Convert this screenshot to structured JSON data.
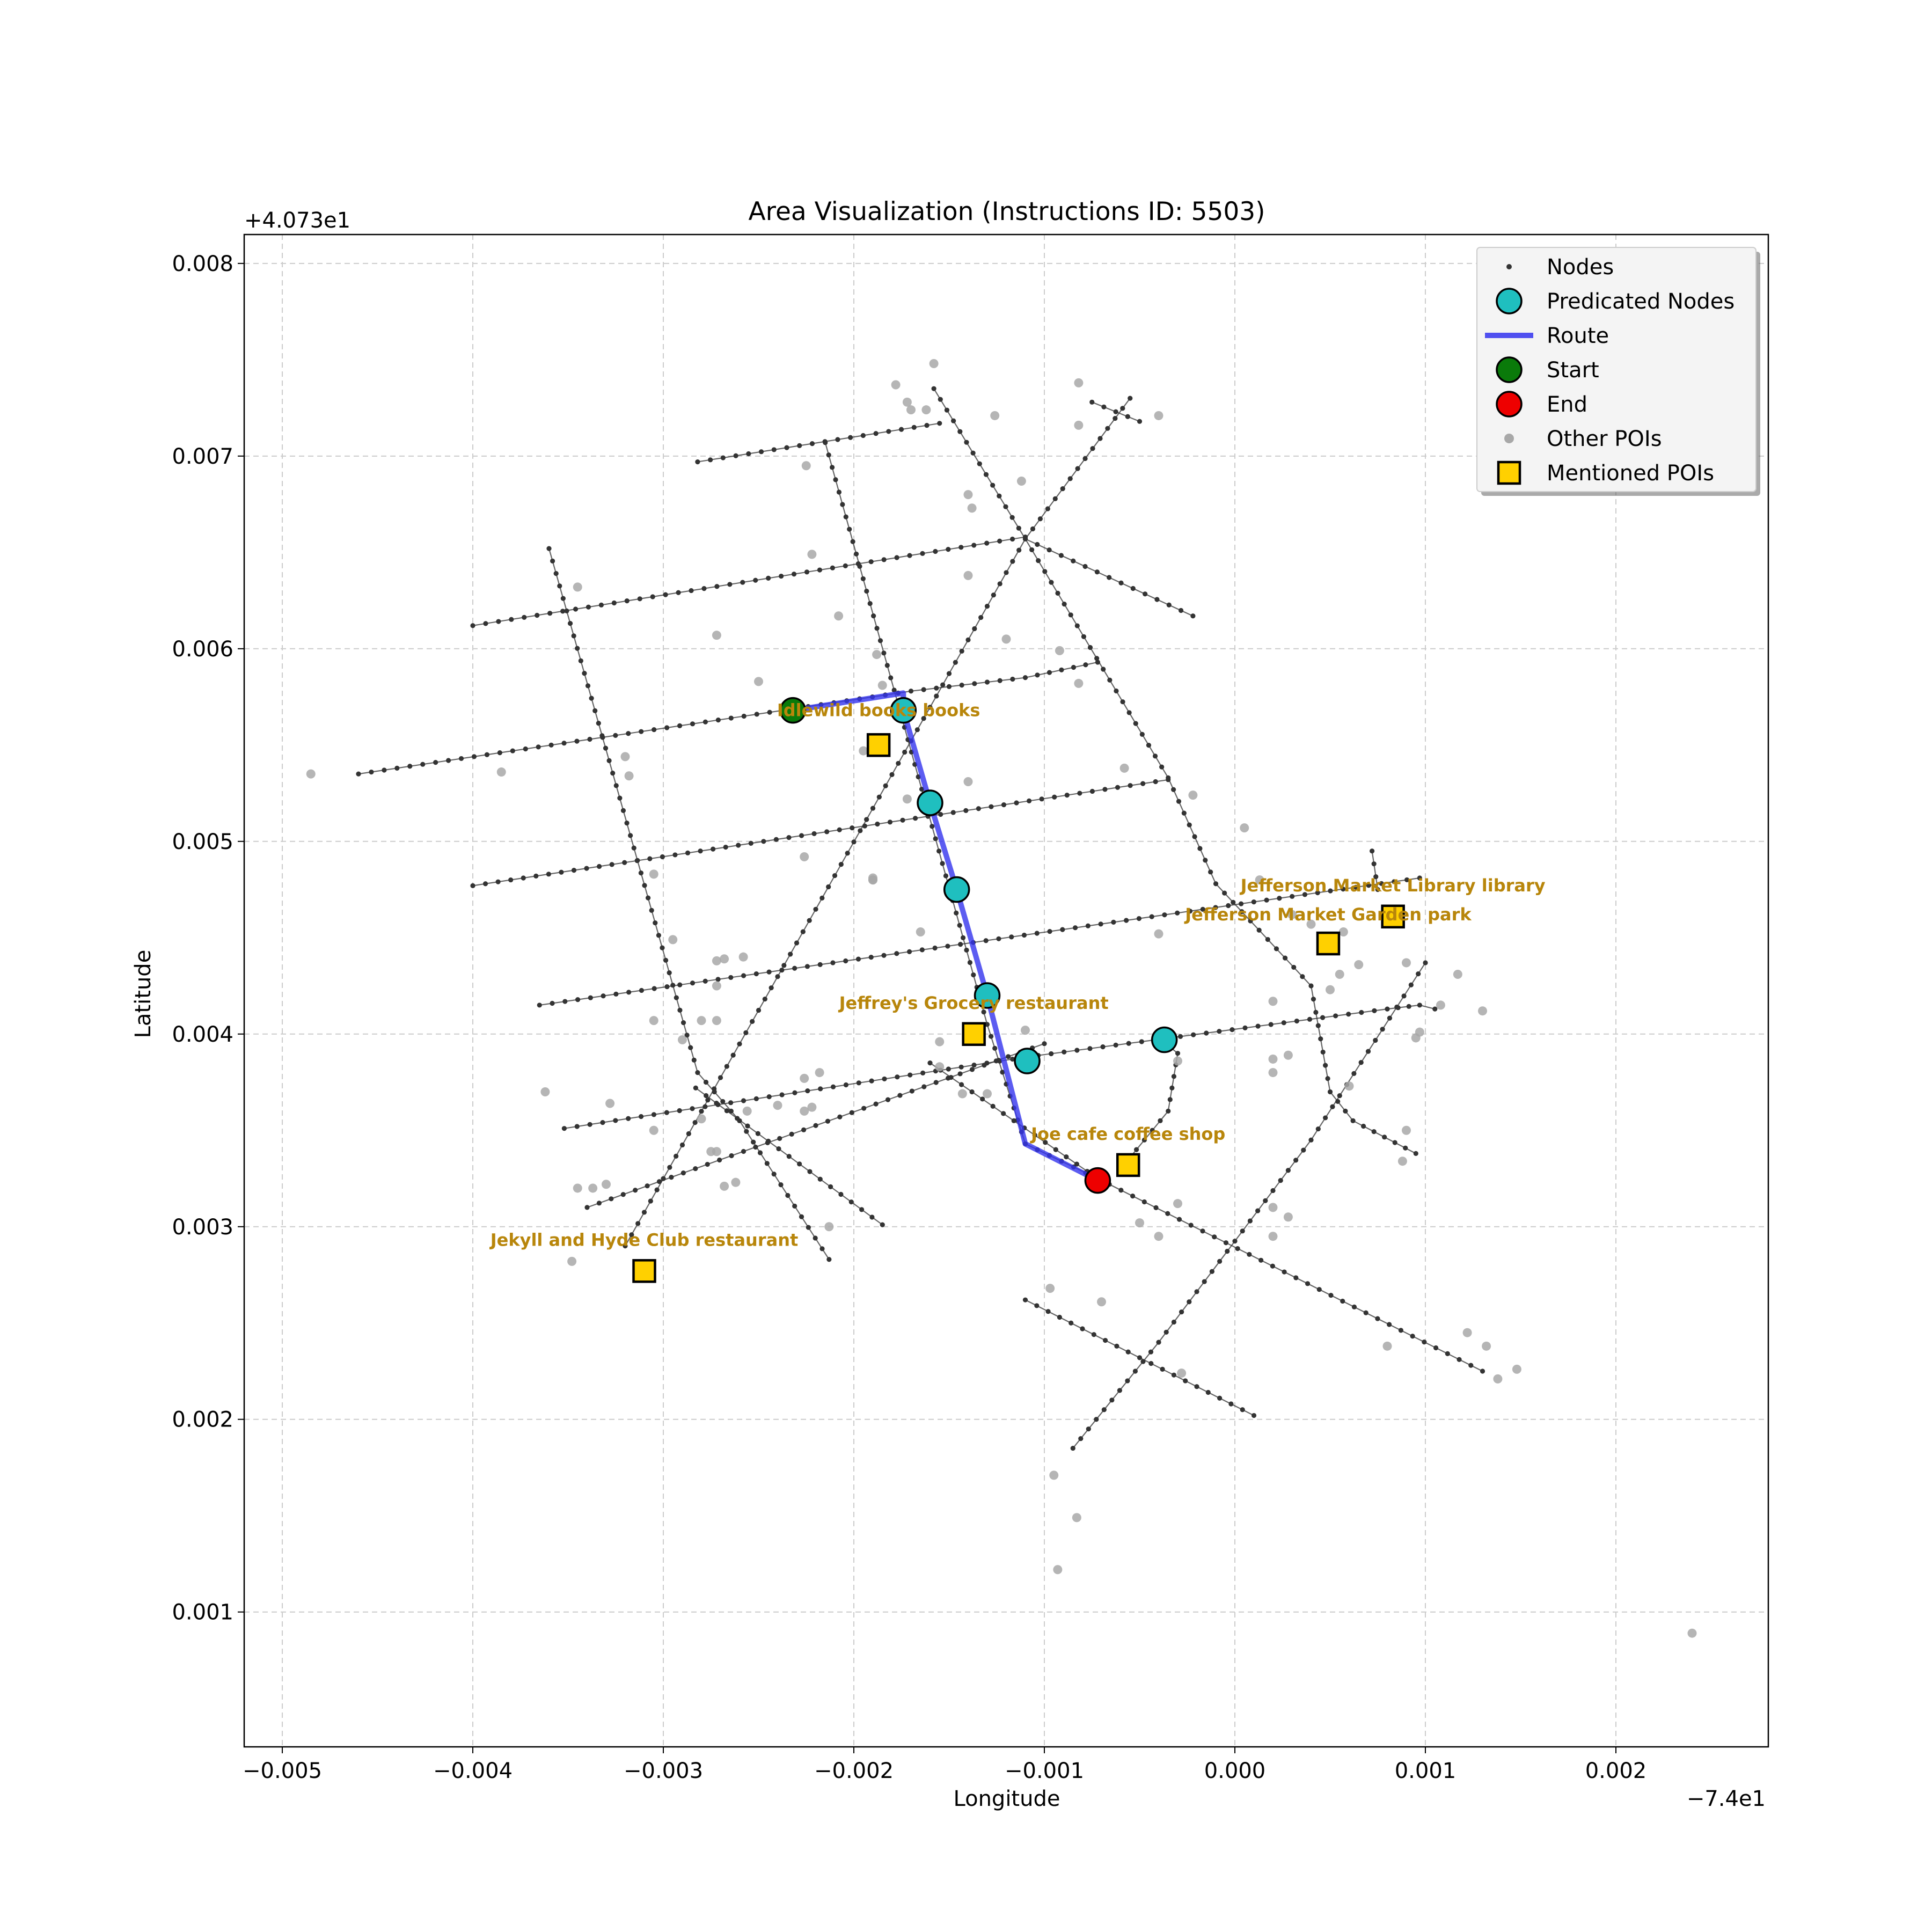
{
  "title": "Area Visualization (Instructions ID: 5503)",
  "x_offset_label": "−7.4e1",
  "y_offset_label": "+4.073e1",
  "colors": {
    "node": "#333333",
    "edge": "#333333",
    "route": "#3333ee",
    "predicted": "#1fbfbf",
    "start": "#0a7a0a",
    "end": "#ee0000",
    "other_poi": "#a8a8a8",
    "mentioned_poi": "#ffd000",
    "poi_label": "#b8860b",
    "grid": "#cccccc"
  },
  "legend": {
    "position": "top-right",
    "items": [
      {
        "label": "Nodes",
        "kind": "node"
      },
      {
        "label": "Predicated Nodes",
        "kind": "predicted"
      },
      {
        "label": "Route",
        "kind": "route"
      },
      {
        "label": "Start",
        "kind": "start"
      },
      {
        "label": "End",
        "kind": "end"
      },
      {
        "label": "Other POIs",
        "kind": "other"
      },
      {
        "label": "Mentioned POIs",
        "kind": "mentioned"
      }
    ]
  },
  "chart_data": {
    "type": "scatter",
    "xlabel": "Longitude",
    "ylabel": "Latitude",
    "xlim": [
      -0.0052,
      0.0028
    ],
    "ylim": [
      0.0003,
      0.00815
    ],
    "x_ticks": [
      -0.005,
      -0.004,
      -0.003,
      -0.002,
      -0.001,
      0.0,
      0.001,
      0.002
    ],
    "x_tick_labels": [
      "−0.005",
      "−0.004",
      "−0.003",
      "−0.002",
      "−0.001",
      "0.000",
      "0.001",
      "0.002"
    ],
    "y_ticks": [
      0.001,
      0.002,
      0.003,
      0.004,
      0.005,
      0.006,
      0.007,
      0.008
    ],
    "y_tick_labels": [
      "0.001",
      "0.002",
      "0.003",
      "0.004",
      "0.005",
      "0.006",
      "0.007",
      "0.008"
    ],
    "grid": true,
    "streets": [
      [
        [
          -0.0046,
          0.00535
        ],
        [
          -0.0017,
          0.00578
        ],
        [
          -0.0011,
          0.00585
        ],
        [
          -0.00072,
          0.00593
        ]
      ],
      [
        [
          -0.004,
          0.00612
        ],
        [
          -0.0011,
          0.00658
        ]
      ],
      [
        [
          -0.00282,
          0.00697
        ],
        [
          -0.00155,
          0.00717
        ]
      ],
      [
        [
          -0.004,
          0.00477
        ],
        [
          -0.00035,
          0.00532
        ]
      ],
      [
        [
          -0.00365,
          0.00415
        ],
        [
          0.00097,
          0.00481
        ]
      ],
      [
        [
          -0.00352,
          0.00351
        ],
        [
          -0.0011,
          0.00388
        ],
        [
          0.0008,
          0.00413
        ],
        [
          0.00097,
          0.00415
        ],
        [
          0.00105,
          0.00413
        ]
      ],
      [
        [
          -0.0034,
          0.0031
        ],
        [
          -0.001,
          0.00395
        ]
      ],
      [
        [
          -0.0036,
          0.00652
        ],
        [
          -0.00282,
          0.0038
        ],
        [
          -0.0026,
          0.00355
        ],
        [
          -0.00213,
          0.00283
        ]
      ],
      [
        [
          -0.00283,
          0.00372
        ],
        [
          -0.00185,
          0.00301
        ]
      ],
      [
        [
          -0.00215,
          0.00707
        ],
        [
          -0.0013,
          0.00405
        ],
        [
          -0.0011,
          0.00343
        ]
      ],
      [
        [
          -0.0011,
          0.00343
        ],
        [
          -0.00072,
          0.00325
        ]
      ],
      [
        [
          -0.00158,
          0.00735
        ],
        [
          -0.0011,
          0.00657
        ],
        [
          -0.00035,
          0.00533
        ],
        [
          -0.0001,
          0.00478
        ],
        [
          0.0004,
          0.00425
        ],
        [
          0.0005,
          0.0037
        ],
        [
          0.00062,
          0.00355
        ],
        [
          0.00095,
          0.00338
        ]
      ],
      [
        [
          -0.0016,
          0.00385
        ],
        [
          -0.00072,
          0.00325
        ],
        [
          0.0013,
          0.00225
        ]
      ],
      [
        [
          -0.0011,
          0.00262
        ],
        [
          0.0001,
          0.00202
        ]
      ],
      [
        [
          -0.0032,
          0.0029
        ],
        [
          -0.0011,
          0.00657
        ],
        [
          -0.00055,
          0.0073
        ]
      ],
      [
        [
          -0.00085,
          0.00185
        ],
        [
          -0.0004,
          0.0024
        ],
        [
          0.0004,
          0.00345
        ],
        [
          0.001,
          0.00437
        ]
      ],
      [
        [
          -0.00075,
          0.00728
        ],
        [
          -0.0005,
          0.00718
        ]
      ],
      [
        [
          -0.0011,
          0.00657
        ],
        [
          -0.00022,
          0.00617
        ]
      ],
      [
        [
          -0.0006,
          0.0033
        ],
        [
          -0.00035,
          0.0036
        ],
        [
          -0.0003,
          0.0039
        ],
        [
          -0.0004,
          0.00398
        ]
      ],
      [
        [
          0.00072,
          0.00495
        ],
        [
          0.00075,
          0.00475
        ]
      ]
    ],
    "other_pois": [
      [
        -0.00485,
        0.00535
      ],
      [
        -0.00385,
        0.00536
      ],
      [
        -0.00345,
        0.00632
      ],
      [
        -0.0032,
        0.00544
      ],
      [
        -0.00318,
        0.00534
      ],
      [
        -0.00305,
        0.00483
      ],
      [
        -0.00295,
        0.00449
      ],
      [
        -0.00305,
        0.00407
      ],
      [
        -0.0029,
        0.00397
      ],
      [
        -0.00362,
        0.0037
      ],
      [
        -0.00328,
        0.00364
      ],
      [
        -0.00305,
        0.0035
      ],
      [
        -0.00345,
        0.0032
      ],
      [
        -0.00337,
        0.0032
      ],
      [
        -0.0033,
        0.00322
      ],
      [
        -0.00348,
        0.00282
      ],
      [
        -0.0028,
        0.00356
      ],
      [
        -0.00275,
        0.00339
      ],
      [
        -0.00272,
        0.00339
      ],
      [
        -0.00268,
        0.00321
      ],
      [
        -0.00262,
        0.00323
      ],
      [
        -0.00256,
        0.0036
      ],
      [
        -0.0024,
        0.00363
      ],
      [
        -0.00226,
        0.00377
      ],
      [
        -0.00218,
        0.0038
      ],
      [
        -0.00226,
        0.0036
      ],
      [
        -0.00222,
        0.00362
      ],
      [
        -0.00213,
        0.003
      ],
      [
        -0.00272,
        0.00438
      ],
      [
        -0.00268,
        0.00439
      ],
      [
        -0.00258,
        0.0044
      ],
      [
        -0.00272,
        0.00425
      ],
      [
        -0.0028,
        0.00407
      ],
      [
        -0.00272,
        0.00407
      ],
      [
        -0.00208,
        0.00617
      ],
      [
        -0.00222,
        0.00649
      ],
      [
        -0.00225,
        0.00695
      ],
      [
        -0.00272,
        0.00607
      ],
      [
        -0.0025,
        0.00583
      ],
      [
        -0.00195,
        0.00547
      ],
      [
        -0.00188,
        0.00597
      ],
      [
        -0.00185,
        0.00581
      ],
      [
        -0.00226,
        0.00492
      ],
      [
        -0.0019,
        0.0048
      ],
      [
        -0.0019,
        0.00481
      ],
      [
        -0.00172,
        0.00522
      ],
      [
        -0.00165,
        0.00453
      ],
      [
        -0.00178,
        0.00737
      ],
      [
        -0.00172,
        0.00728
      ],
      [
        -0.0017,
        0.00724
      ],
      [
        -0.00162,
        0.00724
      ],
      [
        -0.00158,
        0.00748
      ],
      [
        -0.0014,
        0.0068
      ],
      [
        -0.00138,
        0.00673
      ],
      [
        -0.0014,
        0.00638
      ],
      [
        -0.0014,
        0.00531
      ],
      [
        -0.00126,
        0.00721
      ],
      [
        -0.00112,
        0.00687
      ],
      [
        -0.0012,
        0.00605
      ],
      [
        -0.00082,
        0.00738
      ],
      [
        -0.00082,
        0.00716
      ],
      [
        -0.00092,
        0.00599
      ],
      [
        -0.00082,
        0.00582
      ],
      [
        -0.0004,
        0.00721
      ],
      [
        -0.00058,
        0.00538
      ],
      [
        -0.00022,
        0.00524
      ],
      [
        -0.0004,
        0.00452
      ],
      [
        5e-05,
        0.00507
      ],
      [
        0.00013,
        0.0048
      ],
      [
        0.0003,
        0.00462
      ],
      [
        0.0004,
        0.00457
      ],
      [
        0.0005,
        0.00423
      ],
      [
        0.00057,
        0.00453
      ],
      [
        0.00055,
        0.00431
      ],
      [
        0.00065,
        0.00436
      ],
      [
        0.0002,
        0.00417
      ],
      [
        0.0002,
        0.00387
      ],
      [
        0.0002,
        0.0038
      ],
      [
        0.00028,
        0.00389
      ],
      [
        0.0006,
        0.00373
      ],
      [
        0.0009,
        0.00437
      ],
      [
        0.00097,
        0.00401
      ],
      [
        0.00095,
        0.00398
      ],
      [
        0.00108,
        0.00415
      ],
      [
        0.00117,
        0.00431
      ],
      [
        0.0013,
        0.00412
      ],
      [
        0.0009,
        0.0035
      ],
      [
        0.00088,
        0.00334
      ],
      [
        -0.0011,
        0.00402
      ],
      [
        -0.00143,
        0.00369
      ],
      [
        -0.00155,
        0.00396
      ],
      [
        -0.00155,
        0.00383
      ],
      [
        -0.0013,
        0.00369
      ],
      [
        -0.00097,
        0.00268
      ],
      [
        -0.0007,
        0.00261
      ],
      [
        -0.0005,
        0.00302
      ],
      [
        -0.0004,
        0.00295
      ],
      [
        -0.0003,
        0.00312
      ],
      [
        -0.0003,
        0.00386
      ],
      [
        -0.00028,
        0.00224
      ],
      [
        0.0002,
        0.0031
      ],
      [
        0.00028,
        0.00305
      ],
      [
        0.0002,
        0.00295
      ],
      [
        -0.00095,
        0.00171
      ],
      [
        -0.00083,
        0.00149
      ],
      [
        -0.00093,
        0.00122
      ],
      [
        0.0008,
        0.00238
      ],
      [
        0.00122,
        0.00245
      ],
      [
        0.00132,
        0.00238
      ],
      [
        0.00138,
        0.00221
      ],
      [
        0.00148,
        0.00226
      ],
      [
        0.0024,
        0.00089
      ],
      [
        -0.0019,
        0.0048
      ]
    ],
    "route": [
      [
        -0.00232,
        0.00568
      ],
      [
        -0.00174,
        0.00577
      ],
      [
        -0.00174,
        0.00568
      ],
      [
        -0.0016,
        0.0052
      ],
      [
        -0.00146,
        0.00475
      ],
      [
        -0.0013,
        0.0042
      ],
      [
        -0.0011,
        0.00343
      ],
      [
        -0.00072,
        0.00324
      ]
    ],
    "predicted_nodes": [
      [
        -0.00174,
        0.00568
      ],
      [
        -0.0016,
        0.0052
      ],
      [
        -0.00146,
        0.00475
      ],
      [
        -0.0013,
        0.0042
      ],
      [
        -0.00109,
        0.00386
      ],
      [
        -0.00037,
        0.00397
      ]
    ],
    "start": [
      -0.00232,
      0.00568
    ],
    "end": [
      -0.00072,
      0.00324
    ],
    "mentioned_pois": [
      {
        "name": "Idlewild books   books",
        "x": -0.00187,
        "y": 0.0055,
        "label_x": -0.00187,
        "label_y": 0.00565
      },
      {
        "name": "Jefferson Market Library library",
        "x": 0.00083,
        "y": 0.00461,
        "label_x": 0.00083,
        "label_y": 0.00474
      },
      {
        "name": "Jefferson Market Garden   park",
        "x": 0.00049,
        "y": 0.00447,
        "label_x": 0.00049,
        "label_y": 0.00459
      },
      {
        "name": "Jeffrey's Grocery restaurant",
        "x": -0.00137,
        "y": 0.004,
        "label_x": -0.00137,
        "label_y": 0.00413
      },
      {
        "name": "Joe cafe coffee shop",
        "x": -0.00056,
        "y": 0.00332,
        "label_x": -0.00056,
        "label_y": 0.00345
      },
      {
        "name": "Jekyll and Hyde Club restaurant",
        "x": -0.0031,
        "y": 0.00277,
        "label_x": -0.0031,
        "label_y": 0.0029
      }
    ]
  }
}
